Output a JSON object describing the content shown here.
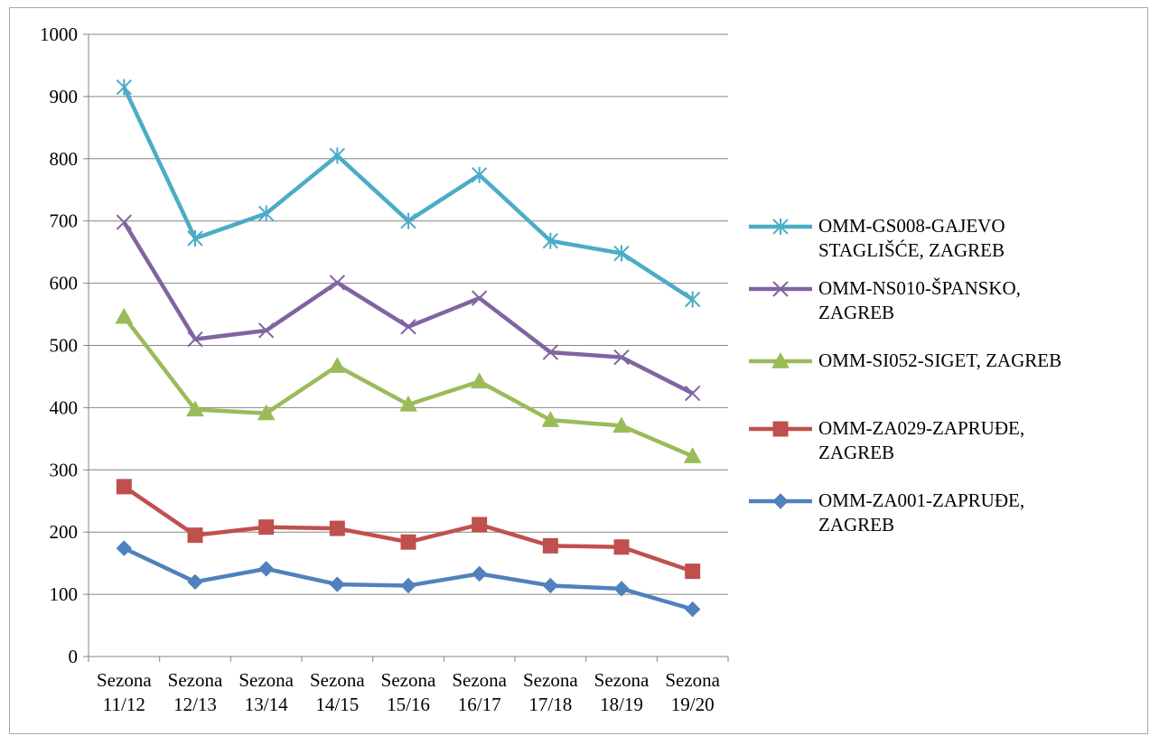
{
  "chart_data": {
    "type": "line",
    "title": "",
    "xlabel": "",
    "ylabel": "",
    "ylim": [
      0,
      1000
    ],
    "yticks": [
      "0",
      "100",
      "200",
      "300",
      "400",
      "500",
      "600",
      "700",
      "800",
      "900",
      "1000"
    ],
    "categories": [
      [
        "Sezona",
        "11/12"
      ],
      [
        "Sezona",
        "12/13"
      ],
      [
        "Sezona",
        "13/14"
      ],
      [
        "Sezona",
        "14/15"
      ],
      [
        "Sezona",
        "15/16"
      ],
      [
        "Sezona",
        "16/17"
      ],
      [
        "Sezona",
        "17/18"
      ],
      [
        "Sezona",
        "18/19"
      ],
      [
        "Sezona",
        "19/20"
      ]
    ],
    "grid": "horizontal",
    "legend_position": "right",
    "series": [
      {
        "name": "OMM-GS008-GAJEVO STAGLIŠĆE, ZAGREB",
        "legend_lines": [
          "OMM-GS008-GAJEVO",
          "STAGLIŠĆE, ZAGREB"
        ],
        "color": "#4bacc6",
        "marker": "asterisk",
        "values": [
          915,
          672,
          712,
          805,
          700,
          774,
          668,
          648,
          574
        ]
      },
      {
        "name": "OMM-NS010-ŠPANSKO, ZAGREB",
        "legend_lines": [
          "OMM-NS010-ŠPANSKO,",
          "ZAGREB"
        ],
        "color": "#8064a2",
        "marker": "x",
        "values": [
          698,
          510,
          524,
          601,
          530,
          576,
          489,
          481,
          423
        ]
      },
      {
        "name": "OMM-SI052-SIGET, ZAGREB",
        "legend_lines": [
          "OMM-SI052-SIGET, ZAGREB"
        ],
        "color": "#9bbb59",
        "marker": "triangle",
        "values": [
          546,
          397,
          391,
          467,
          405,
          442,
          380,
          371,
          322
        ]
      },
      {
        "name": "OMM-ZA029-ZAPRUĐE, ZAGREB",
        "legend_lines": [
          "OMM-ZA029-ZAPRUĐE,",
          "ZAGREB"
        ],
        "color": "#c0504d",
        "marker": "square",
        "values": [
          273,
          195,
          208,
          206,
          184,
          212,
          178,
          176,
          137
        ]
      },
      {
        "name": "OMM-ZA001-ZAPRUĐE, ZAGREB",
        "legend_lines": [
          "OMM-ZA001-ZAPRUĐE,",
          "ZAGREB"
        ],
        "color": "#4f81bd",
        "marker": "diamond",
        "values": [
          174,
          120,
          141,
          116,
          114,
          133,
          114,
          109,
          76
        ]
      }
    ]
  }
}
